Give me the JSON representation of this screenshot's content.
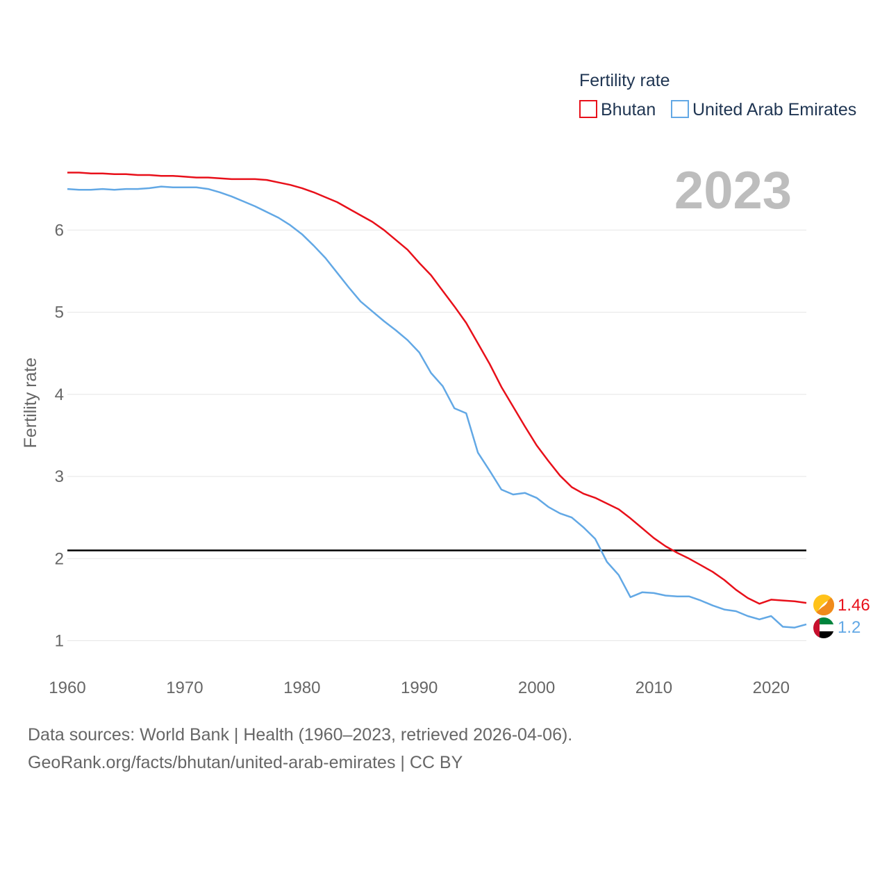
{
  "chart_data": {
    "type": "line",
    "title": "",
    "xlabel": "",
    "ylabel": "Fertility rate",
    "year_display": "2023",
    "xlim": [
      1960,
      2023
    ],
    "ylim": [
      0.7,
      7.0
    ],
    "x_ticks": [
      1960,
      1970,
      1980,
      1990,
      2000,
      2010,
      2020
    ],
    "y_ticks": [
      1,
      2,
      3,
      4,
      5,
      6
    ],
    "reference_line": 2.1,
    "legend": {
      "title": "Fertility rate",
      "position": "top-right"
    },
    "x": [
      1960,
      1961,
      1962,
      1963,
      1964,
      1965,
      1966,
      1967,
      1968,
      1969,
      1970,
      1971,
      1972,
      1973,
      1974,
      1975,
      1976,
      1977,
      1978,
      1979,
      1980,
      1981,
      1982,
      1983,
      1984,
      1985,
      1986,
      1987,
      1988,
      1989,
      1990,
      1991,
      1992,
      1993,
      1994,
      1995,
      1996,
      1997,
      1998,
      1999,
      2000,
      2001,
      2002,
      2003,
      2004,
      2005,
      2006,
      2007,
      2008,
      2009,
      2010,
      2011,
      2012,
      2013,
      2014,
      2015,
      2016,
      2017,
      2018,
      2019,
      2020,
      2021,
      2022,
      2023
    ],
    "series": [
      {
        "name": "Bhutan",
        "color": "#e8101a",
        "end_label": "1.46",
        "flag_icon": "bhutan-flag-icon",
        "values": [
          6.7,
          6.7,
          6.69,
          6.69,
          6.68,
          6.68,
          6.67,
          6.67,
          6.66,
          6.66,
          6.65,
          6.64,
          6.64,
          6.63,
          6.62,
          6.62,
          6.62,
          6.61,
          6.58,
          6.55,
          6.51,
          6.46,
          6.4,
          6.34,
          6.26,
          6.18,
          6.1,
          6.0,
          5.88,
          5.76,
          5.6,
          5.45,
          5.26,
          5.07,
          4.87,
          4.62,
          4.37,
          4.09,
          3.85,
          3.61,
          3.38,
          3.19,
          3.01,
          2.87,
          2.79,
          2.74,
          2.67,
          2.6,
          2.49,
          2.37,
          2.25,
          2.15,
          2.07,
          2.0,
          1.92,
          1.84,
          1.74,
          1.62,
          1.52,
          1.45,
          1.5,
          1.49,
          1.48,
          1.46
        ]
      },
      {
        "name": "United Arab Emirates",
        "color": "#62a8e5",
        "end_label": "1.2",
        "flag_icon": "uae-flag-icon",
        "values": [
          6.5,
          6.49,
          6.49,
          6.5,
          6.49,
          6.5,
          6.5,
          6.51,
          6.53,
          6.52,
          6.52,
          6.52,
          6.5,
          6.46,
          6.41,
          6.35,
          6.29,
          6.22,
          6.15,
          6.06,
          5.95,
          5.81,
          5.66,
          5.48,
          5.3,
          5.13,
          5.01,
          4.89,
          4.78,
          4.66,
          4.51,
          4.26,
          4.1,
          3.83,
          3.77,
          3.29,
          3.07,
          2.84,
          2.78,
          2.8,
          2.74,
          2.63,
          2.55,
          2.5,
          2.38,
          2.24,
          1.96,
          1.8,
          1.53,
          1.59,
          1.58,
          1.55,
          1.54,
          1.54,
          1.49,
          1.43,
          1.38,
          1.36,
          1.3,
          1.26,
          1.3,
          1.17,
          1.16,
          1.2
        ]
      }
    ]
  },
  "footer": {
    "line1": "Data sources: World Bank | Health (1960–2023, retrieved 2026-04-06).",
    "line2": "GeoRank.org/facts/bhutan/united-arab-emirates | CC BY"
  }
}
